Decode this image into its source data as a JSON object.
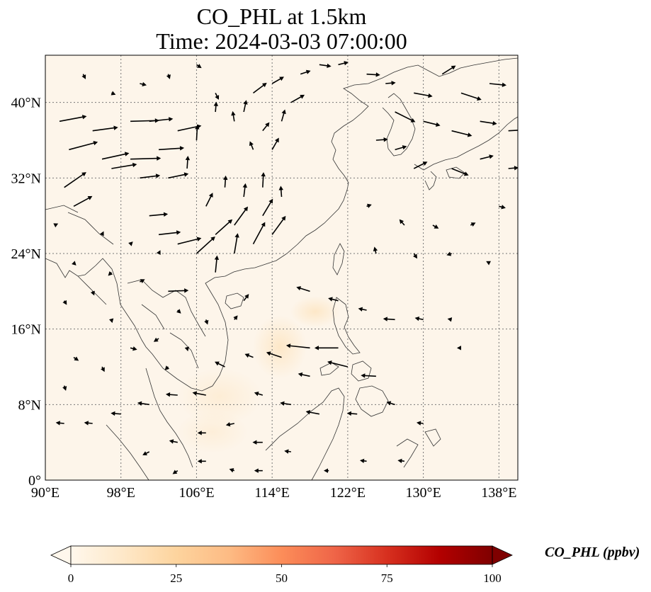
{
  "title": {
    "line1": "CO_PHL at 1.5km",
    "line2": "Time: 2024-03-03 07:00:00"
  },
  "map": {
    "lon_range": [
      90,
      140
    ],
    "lat_range": [
      0,
      45
    ],
    "x_ticks": [
      {
        "value": 90,
        "label": "90°E"
      },
      {
        "value": 98,
        "label": "98°E"
      },
      {
        "value": 106,
        "label": "106°E"
      },
      {
        "value": 114,
        "label": "114°E"
      },
      {
        "value": 122,
        "label": "122°E"
      },
      {
        "value": 130,
        "label": "130°E"
      },
      {
        "value": 138,
        "label": "138°E"
      }
    ],
    "y_ticks": [
      {
        "value": 0,
        "label": "0°"
      },
      {
        "value": 8,
        "label": "8°N"
      },
      {
        "value": 16,
        "label": "16°N"
      },
      {
        "value": 24,
        "label": "24°N"
      },
      {
        "value": 32,
        "label": "32°N"
      },
      {
        "value": 40,
        "label": "40°N"
      }
    ],
    "gridlines": true,
    "background_color": "#fdf5ea",
    "coastline_color": "#333333",
    "arrow_color": "#000000"
  },
  "colorbar": {
    "label": "CO_PHL (ppbv)",
    "min": 0,
    "max": 100,
    "ticks": [
      {
        "value": 0,
        "label": "0"
      },
      {
        "value": 25,
        "label": "25"
      },
      {
        "value": 50,
        "label": "50"
      },
      {
        "value": 75,
        "label": "75"
      },
      {
        "value": 100,
        "label": "100"
      }
    ],
    "extend": "both",
    "colormap": "OrRd",
    "stops": [
      "#fff7ec",
      "#fee8c8",
      "#fdd49e",
      "#fdbb84",
      "#fc8d59",
      "#ef6548",
      "#d7301f",
      "#b30000",
      "#7f0000"
    ]
  },
  "wind_vectors": [
    {
      "lon": 91.5,
      "lat": 38,
      "u": 3.2,
      "v": 0.6
    },
    {
      "lon": 92.5,
      "lat": 35,
      "u": 3.4,
      "v": 0.9
    },
    {
      "lon": 92,
      "lat": 31,
      "u": 2.6,
      "v": 1.8
    },
    {
      "lon": 93,
      "lat": 29,
      "u": 2.2,
      "v": 1.2
    },
    {
      "lon": 95,
      "lat": 37,
      "u": 3.0,
      "v": 0.4
    },
    {
      "lon": 96,
      "lat": 34,
      "u": 3.2,
      "v": 0.7
    },
    {
      "lon": 97,
      "lat": 33,
      "u": 3.0,
      "v": 0.5
    },
    {
      "lon": 99,
      "lat": 38,
      "u": 3.4,
      "v": 0.1
    },
    {
      "lon": 99,
      "lat": 34,
      "u": 3.6,
      "v": 0.1
    },
    {
      "lon": 100,
      "lat": 32,
      "u": 2.4,
      "v": 0.3
    },
    {
      "lon": 101,
      "lat": 38,
      "u": 2.8,
      "v": 0.3
    },
    {
      "lon": 102,
      "lat": 35,
      "u": 3.0,
      "v": 0.2
    },
    {
      "lon": 103,
      "lat": 32,
      "u": 2.4,
      "v": 0.5
    },
    {
      "lon": 104,
      "lat": 37,
      "u": 2.8,
      "v": 0.6
    },
    {
      "lon": 101,
      "lat": 28,
      "u": 2.2,
      "v": 0.2
    },
    {
      "lon": 102,
      "lat": 26,
      "u": 2.6,
      "v": 0.3
    },
    {
      "lon": 104,
      "lat": 25,
      "u": 2.8,
      "v": 0.7
    },
    {
      "lon": 106,
      "lat": 24,
      "u": 2.2,
      "v": 2.0
    },
    {
      "lon": 108,
      "lat": 26,
      "u": 2.0,
      "v": 1.8
    },
    {
      "lon": 110,
      "lat": 27,
      "u": 1.6,
      "v": 2.2
    },
    {
      "lon": 112,
      "lat": 25,
      "u": 1.4,
      "v": 2.6
    },
    {
      "lon": 113,
      "lat": 28,
      "u": 1.2,
      "v": 2.0
    },
    {
      "lon": 114,
      "lat": 26,
      "u": 1.6,
      "v": 2.2
    },
    {
      "lon": 110,
      "lat": 24,
      "u": 0.4,
      "v": 2.4
    },
    {
      "lon": 108,
      "lat": 22,
      "u": 0.2,
      "v": 2.0
    },
    {
      "lon": 107,
      "lat": 29,
      "u": 0.8,
      "v": 1.6
    },
    {
      "lon": 109,
      "lat": 31,
      "u": 0.1,
      "v": 1.4
    },
    {
      "lon": 111,
      "lat": 30,
      "u": 0.2,
      "v": 1.6
    },
    {
      "lon": 113,
      "lat": 31,
      "u": 0.1,
      "v": 1.8
    },
    {
      "lon": 115,
      "lat": 30,
      "u": -0.1,
      "v": 1.3
    },
    {
      "lon": 105,
      "lat": 33,
      "u": 0.1,
      "v": 1.5
    },
    {
      "lon": 106,
      "lat": 36,
      "u": 0.1,
      "v": 1.8
    },
    {
      "lon": 108,
      "lat": 39,
      "u": 0.1,
      "v": 1.2
    },
    {
      "lon": 110,
      "lat": 38,
      "u": -0.2,
      "v": 1.2
    },
    {
      "lon": 111,
      "lat": 39,
      "u": 0.3,
      "v": 1.4
    },
    {
      "lon": 112,
      "lat": 35,
      "u": -0.4,
      "v": 1.0
    },
    {
      "lon": 113,
      "lat": 37,
      "u": 0.8,
      "v": 1.0
    },
    {
      "lon": 114,
      "lat": 35,
      "u": 0.8,
      "v": 1.4
    },
    {
      "lon": 115,
      "lat": 38,
      "u": 0.4,
      "v": 1.4
    },
    {
      "lon": 112,
      "lat": 41,
      "u": 1.6,
      "v": 1.2
    },
    {
      "lon": 114,
      "lat": 42,
      "u": 1.4,
      "v": 0.8
    },
    {
      "lon": 116,
      "lat": 40,
      "u": 1.6,
      "v": 0.9
    },
    {
      "lon": 117,
      "lat": 43,
      "u": 1.2,
      "v": 0.4
    },
    {
      "lon": 119,
      "lat": 44,
      "u": 1.4,
      "v": -0.2
    },
    {
      "lon": 121,
      "lat": 44,
      "u": 1.2,
      "v": 0.3
    },
    {
      "lon": 124,
      "lat": 43,
      "u": 1.6,
      "v": -0.1
    },
    {
      "lon": 126,
      "lat": 42,
      "u": 1.2,
      "v": 0.1
    },
    {
      "lon": 129,
      "lat": 41,
      "u": 2.2,
      "v": -0.4
    },
    {
      "lon": 132,
      "lat": 43,
      "u": 1.6,
      "v": 1.0
    },
    {
      "lon": 134,
      "lat": 41,
      "u": 2.4,
      "v": -0.8
    },
    {
      "lon": 137,
      "lat": 42,
      "u": 2.0,
      "v": -0.2
    },
    {
      "lon": 127,
      "lat": 39,
      "u": 2.4,
      "v": -1.2
    },
    {
      "lon": 130,
      "lat": 38,
      "u": 2.0,
      "v": -0.5
    },
    {
      "lon": 133,
      "lat": 37,
      "u": 2.4,
      "v": -0.6
    },
    {
      "lon": 136,
      "lat": 38,
      "u": 2.0,
      "v": -0.3
    },
    {
      "lon": 139,
      "lat": 37,
      "u": 1.8,
      "v": 0.1
    },
    {
      "lon": 125,
      "lat": 36,
      "u": 1.4,
      "v": 0.1
    },
    {
      "lon": 127,
      "lat": 35,
      "u": 1.4,
      "v": 0.4
    },
    {
      "lon": 129,
      "lat": 33,
      "u": 1.6,
      "v": 0.8
    },
    {
      "lon": 133,
      "lat": 33,
      "u": 2.0,
      "v": -0.8
    },
    {
      "lon": 136,
      "lat": 34,
      "u": 1.6,
      "v": 0.4
    },
    {
      "lon": 139,
      "lat": 33,
      "u": 1.2,
      "v": 0.1
    },
    {
      "lon": 124,
      "lat": 29,
      "u": 0.6,
      "v": 0.2
    },
    {
      "lon": 128,
      "lat": 27,
      "u": -0.6,
      "v": 0.7
    },
    {
      "lon": 131,
      "lat": 27,
      "u": 0.7,
      "v": -0.4
    },
    {
      "lon": 135,
      "lat": 27,
      "u": 0.6,
      "v": 0.3
    },
    {
      "lon": 138,
      "lat": 29,
      "u": 0.8,
      "v": -0.2
    },
    {
      "lon": 125,
      "lat": 24,
      "u": -0.2,
      "v": 0.8
    },
    {
      "lon": 129,
      "lat": 24,
      "u": 0.4,
      "v": -0.6
    },
    {
      "lon": 133,
      "lat": 24,
      "u": -0.6,
      "v": -0.2
    },
    {
      "lon": 137,
      "lat": 23,
      "u": -0.4,
      "v": 0.2
    },
    {
      "lon": 118,
      "lat": 20,
      "u": -1.6,
      "v": 0.5
    },
    {
      "lon": 121,
      "lat": 19,
      "u": -1.2,
      "v": 0.3
    },
    {
      "lon": 124,
      "lat": 18,
      "u": -1.0,
      "v": 0.2
    },
    {
      "lon": 127,
      "lat": 17,
      "u": -1.4,
      "v": 0.1
    },
    {
      "lon": 130,
      "lat": 17,
      "u": -1.0,
      "v": 0.2
    },
    {
      "lon": 133,
      "lat": 17,
      "u": -0.5,
      "v": 0.1
    },
    {
      "lon": 118,
      "lat": 14,
      "u": -2.8,
      "v": 0.3
    },
    {
      "lon": 121,
      "lat": 14,
      "u": -2.8,
      "v": 0.0
    },
    {
      "lon": 115,
      "lat": 13,
      "u": -1.8,
      "v": 0.6
    },
    {
      "lon": 112,
      "lat": 13,
      "u": -1.0,
      "v": 0.4
    },
    {
      "lon": 118,
      "lat": 11,
      "u": -1.4,
      "v": 0.3
    },
    {
      "lon": 122,
      "lat": 12,
      "u": -2.4,
      "v": 0.6
    },
    {
      "lon": 125,
      "lat": 11,
      "u": -1.8,
      "v": 0.1
    },
    {
      "lon": 113,
      "lat": 9,
      "u": -1.0,
      "v": 0.3
    },
    {
      "lon": 116,
      "lat": 8,
      "u": -1.3,
      "v": 0.2
    },
    {
      "lon": 119,
      "lat": 7,
      "u": -1.6,
      "v": 0.3
    },
    {
      "lon": 123,
      "lat": 7,
      "u": -1.2,
      "v": 0.1
    },
    {
      "lon": 127,
      "lat": 8,
      "u": -1.0,
      "v": 0.3
    },
    {
      "lon": 130,
      "lat": 6,
      "u": -0.8,
      "v": 0.1
    },
    {
      "lon": 134,
      "lat": 14,
      "u": -0.5,
      "v": 0.0
    },
    {
      "lon": 109,
      "lat": 12,
      "u": -1.2,
      "v": 0.6
    },
    {
      "lon": 107,
      "lat": 9,
      "u": -1.6,
      "v": 0.3
    },
    {
      "lon": 104,
      "lat": 9,
      "u": -1.4,
      "v": 0.1
    },
    {
      "lon": 101,
      "lat": 8,
      "u": -1.4,
      "v": 0.2
    },
    {
      "lon": 98,
      "lat": 7,
      "u": -1.2,
      "v": 0.1
    },
    {
      "lon": 95,
      "lat": 6,
      "u": -1.0,
      "v": 0.1
    },
    {
      "lon": 92,
      "lat": 6,
      "u": -1.0,
      "v": 0.1
    },
    {
      "lon": 110,
      "lat": 6,
      "u": -1.0,
      "v": -0.2
    },
    {
      "lon": 107,
      "lat": 5,
      "u": -1.0,
      "v": 0.0
    },
    {
      "lon": 104,
      "lat": 4,
      "u": -1.0,
      "v": 0.2
    },
    {
      "lon": 101,
      "lat": 3,
      "u": -0.8,
      "v": -0.4
    },
    {
      "lon": 113,
      "lat": 4,
      "u": -1.2,
      "v": 0.0
    },
    {
      "lon": 116,
      "lat": 3,
      "u": -0.8,
      "v": 0.1
    },
    {
      "lon": 113,
      "lat": 1,
      "u": -1.0,
      "v": 0.0
    },
    {
      "lon": 110,
      "lat": 1,
      "u": -0.6,
      "v": 0.2
    },
    {
      "lon": 107,
      "lat": 2,
      "u": -1.0,
      "v": 0.0
    },
    {
      "lon": 104,
      "lat": 1,
      "u": -0.6,
      "v": -0.4
    },
    {
      "lon": 120,
      "lat": 1,
      "u": -0.6,
      "v": 0.0
    },
    {
      "lon": 124,
      "lat": 2,
      "u": -0.8,
      "v": 0.1
    },
    {
      "lon": 128,
      "lat": 2,
      "u": -0.8,
      "v": 0.1
    },
    {
      "lon": 97,
      "lat": 17,
      "u": 0.1,
      "v": -0.4
    },
    {
      "lon": 99,
      "lat": 14,
      "u": 0.8,
      "v": -0.2
    },
    {
      "lon": 102,
      "lat": 15,
      "u": -0.6,
      "v": -0.4
    },
    {
      "lon": 105,
      "lat": 14,
      "u": 0.1,
      "v": -0.4
    },
    {
      "lon": 103,
      "lat": 12,
      "u": -0.4,
      "v": -0.4
    },
    {
      "lon": 96,
      "lat": 12,
      "u": 0.3,
      "v": -0.6
    },
    {
      "lon": 93,
      "lat": 13,
      "u": 0.6,
      "v": -0.4
    },
    {
      "lon": 92,
      "lat": 10,
      "u": 0.2,
      "v": -0.6
    },
    {
      "lon": 95,
      "lat": 20,
      "u": 0.2,
      "v": -0.5
    },
    {
      "lon": 92,
      "lat": 19,
      "u": 0.3,
      "v": -0.5
    },
    {
      "lon": 93,
      "lat": 23,
      "u": 0.3,
      "v": -0.3
    },
    {
      "lon": 97,
      "lat": 22,
      "u": -0.4,
      "v": -0.4
    },
    {
      "lon": 100,
      "lat": 21,
      "u": 0.6,
      "v": 0.3
    },
    {
      "lon": 103,
      "lat": 20,
      "u": 2.4,
      "v": 0.1
    },
    {
      "lon": 104,
      "lat": 18,
      "u": 0.4,
      "v": -0.4
    },
    {
      "lon": 107,
      "lat": 17,
      "u": 0.2,
      "v": -0.6
    },
    {
      "lon": 110,
      "lat": 17,
      "u": 0.4,
      "v": 0.5
    },
    {
      "lon": 111,
      "lat": 19,
      "u": 0.6,
      "v": 0.8
    },
    {
      "lon": 102,
      "lat": 24,
      "u": 0.2,
      "v": 0.4
    },
    {
      "lon": 99,
      "lat": 25,
      "u": 0.3,
      "v": 0.3
    },
    {
      "lon": 96,
      "lat": 26,
      "u": 0.2,
      "v": 0.4
    },
    {
      "lon": 91,
      "lat": 27,
      "u": 0.4,
      "v": 0.2
    },
    {
      "lon": 94,
      "lat": 43,
      "u": 0.3,
      "v": -0.6
    },
    {
      "lon": 97,
      "lat": 41,
      "u": 0.5,
      "v": -0.2
    },
    {
      "lon": 100,
      "lat": 42,
      "u": 0.8,
      "v": -0.2
    },
    {
      "lon": 103,
      "lat": 43,
      "u": 0.2,
      "v": -0.6
    },
    {
      "lon": 106,
      "lat": 44,
      "u": 0.6,
      "v": -0.4
    },
    {
      "lon": 108,
      "lat": 41,
      "u": 0.4,
      "v": -0.8
    }
  ]
}
